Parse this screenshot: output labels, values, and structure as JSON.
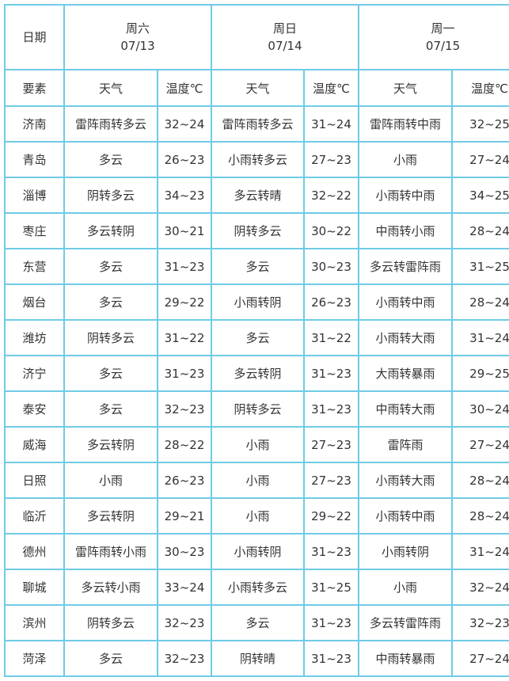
{
  "header": {
    "date_label": "日期",
    "element_label": "要素",
    "weather_label": "天气",
    "temp_label": "温度℃",
    "days": [
      {
        "weekday": "周六",
        "date": "07/13"
      },
      {
        "weekday": "周日",
        "date": "07/14"
      },
      {
        "weekday": "周一",
        "date": "07/15"
      }
    ]
  },
  "rows": [
    {
      "city": "济南",
      "d": [
        [
          "雷阵雨转多云",
          "32~24"
        ],
        [
          "雷阵雨转多云",
          "31~24"
        ],
        [
          "雷阵雨转中雨",
          "32~25"
        ]
      ]
    },
    {
      "city": "青岛",
      "d": [
        [
          "多云",
          "26~23"
        ],
        [
          "小雨转多云",
          "27~23"
        ],
        [
          "小雨",
          "27~24"
        ]
      ]
    },
    {
      "city": "淄博",
      "d": [
        [
          "阴转多云",
          "34~23"
        ],
        [
          "多云转晴",
          "32~22"
        ],
        [
          "小雨转中雨",
          "34~25"
        ]
      ]
    },
    {
      "city": "枣庄",
      "d": [
        [
          "多云转阴",
          "30~21"
        ],
        [
          "阴转多云",
          "30~22"
        ],
        [
          "中雨转小雨",
          "28~24"
        ]
      ]
    },
    {
      "city": "东营",
      "d": [
        [
          "多云",
          "31~23"
        ],
        [
          "多云",
          "30~23"
        ],
        [
          "多云转雷阵雨",
          "31~25"
        ]
      ]
    },
    {
      "city": "烟台",
      "d": [
        [
          "多云",
          "29~22"
        ],
        [
          "小雨转阴",
          "26~23"
        ],
        [
          "小雨转中雨",
          "28~24"
        ]
      ]
    },
    {
      "city": "潍坊",
      "d": [
        [
          "阴转多云",
          "31~22"
        ],
        [
          "多云",
          "31~22"
        ],
        [
          "小雨转大雨",
          "31~24"
        ]
      ]
    },
    {
      "city": "济宁",
      "d": [
        [
          "多云",
          "31~23"
        ],
        [
          "多云转阴",
          "31~23"
        ],
        [
          "大雨转暴雨",
          "29~25"
        ]
      ]
    },
    {
      "city": "泰安",
      "d": [
        [
          "多云",
          "32~23"
        ],
        [
          "阴转多云",
          "31~23"
        ],
        [
          "中雨转大雨",
          "30~24"
        ]
      ]
    },
    {
      "city": "威海",
      "d": [
        [
          "多云转阴",
          "28~22"
        ],
        [
          "小雨",
          "27~23"
        ],
        [
          "雷阵雨",
          "27~24"
        ]
      ]
    },
    {
      "city": "日照",
      "d": [
        [
          "小雨",
          "26~23"
        ],
        [
          "小雨",
          "27~23"
        ],
        [
          "小雨转大雨",
          "28~24"
        ]
      ]
    },
    {
      "city": "临沂",
      "d": [
        [
          "多云转阴",
          "29~21"
        ],
        [
          "小雨",
          "29~22"
        ],
        [
          "小雨转中雨",
          "28~24"
        ]
      ]
    },
    {
      "city": "德州",
      "d": [
        [
          "雷阵雨转小雨",
          "30~23"
        ],
        [
          "小雨转阴",
          "31~23"
        ],
        [
          "小雨转阴",
          "31~24"
        ]
      ]
    },
    {
      "city": "聊城",
      "d": [
        [
          "多云转小雨",
          "33~24"
        ],
        [
          "小雨转多云",
          "31~25"
        ],
        [
          "小雨",
          "32~24"
        ]
      ]
    },
    {
      "city": "滨州",
      "d": [
        [
          "阴转多云",
          "32~23"
        ],
        [
          "多云",
          "31~23"
        ],
        [
          "多云转雷阵雨",
          "32~23"
        ]
      ]
    },
    {
      "city": "菏泽",
      "d": [
        [
          "多云",
          "32~23"
        ],
        [
          "阴转晴",
          "31~23"
        ],
        [
          "中雨转暴雨",
          "27~24"
        ]
      ]
    }
  ]
}
